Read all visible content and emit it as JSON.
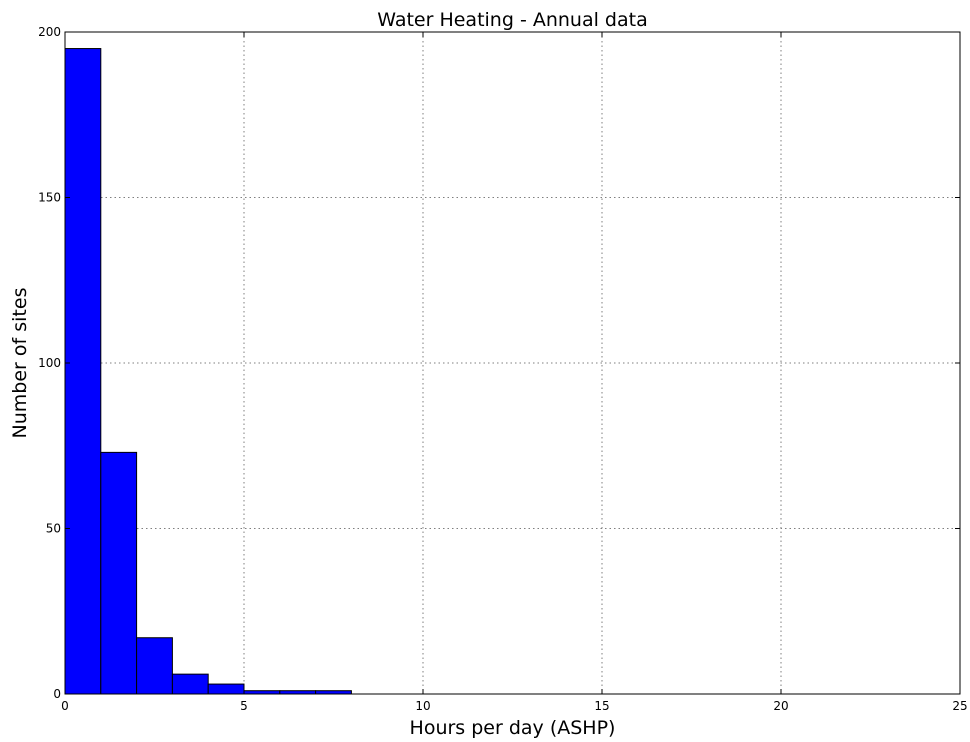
{
  "chart_data": {
    "type": "bar",
    "title": "Water Heating - Annual data",
    "xlabel": "Hours per day (ASHP)",
    "ylabel": "Number of sites",
    "xlim": [
      0,
      25
    ],
    "ylim": [
      0,
      200
    ],
    "xticks": [
      "0",
      "5",
      "10",
      "15",
      "20",
      "25"
    ],
    "yticks": [
      "0",
      "50",
      "100",
      "150",
      "200"
    ],
    "bins": [
      {
        "x0": 0,
        "x1": 1,
        "value": 195
      },
      {
        "x0": 1,
        "x1": 2,
        "value": 73
      },
      {
        "x0": 2,
        "x1": 3,
        "value": 17
      },
      {
        "x0": 3,
        "x1": 4,
        "value": 6
      },
      {
        "x0": 4,
        "x1": 5,
        "value": 3
      },
      {
        "x0": 5,
        "x1": 6,
        "value": 1
      },
      {
        "x0": 6,
        "x1": 7,
        "value": 1
      },
      {
        "x0": 7,
        "x1": 8,
        "value": 1
      }
    ],
    "grid": true,
    "bar_color": "#0000ff",
    "edge_color": "#000000"
  }
}
